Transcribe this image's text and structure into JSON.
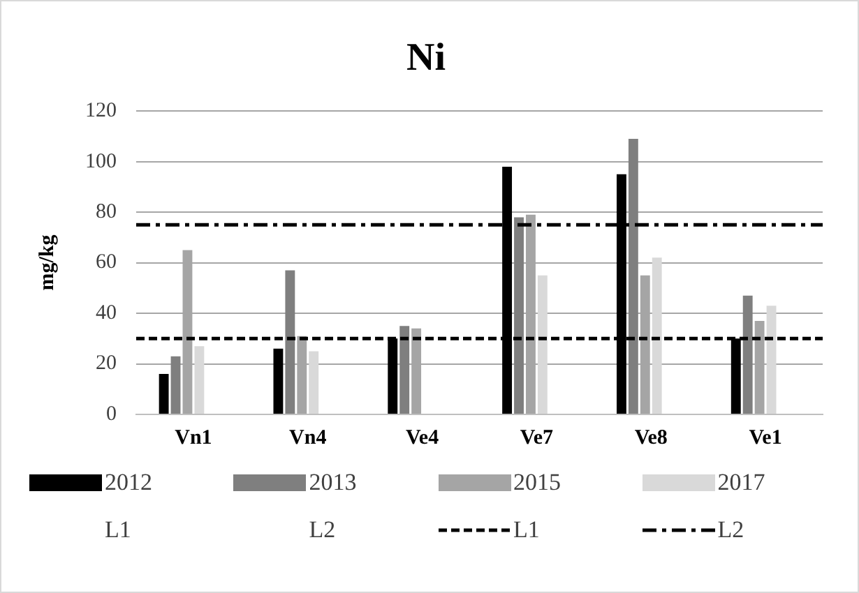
{
  "chart_data": {
    "type": "bar",
    "title": "Ni",
    "ylabel": "mg/kg",
    "categories": [
      "Vn1",
      "Vn4",
      "Ve4",
      "Ve7",
      "Ve8",
      "Ve1"
    ],
    "series": [
      {
        "name": "2012",
        "color": "#000000",
        "values": [
          16,
          26,
          30,
          98,
          95,
          30
        ]
      },
      {
        "name": "2013",
        "color": "#7f7f7f",
        "values": [
          23,
          57,
          35,
          78,
          109,
          47
        ]
      },
      {
        "name": "2015",
        "color": "#a5a5a5",
        "values": [
          65,
          31,
          34,
          79,
          55,
          37
        ]
      },
      {
        "name": "2017",
        "color": "#d9d9d9",
        "values": [
          27,
          25,
          null,
          55,
          62,
          43
        ]
      },
      {
        "name": "L1",
        "values": [
          null,
          null,
          null,
          null,
          null,
          null
        ]
      },
      {
        "name": "L2",
        "values": [
          null,
          null,
          null,
          null,
          null,
          null
        ]
      }
    ],
    "ref_lines": [
      {
        "axis": "y",
        "value": 30,
        "label": "L1",
        "color": "#000000",
        "line_style": "dashed"
      },
      {
        "axis": "y",
        "value": 75,
        "label": "L2",
        "color": "#000000",
        "line_style": "dashdot"
      }
    ],
    "ylim": [
      0,
      120
    ],
    "yticks": [
      0,
      20,
      40,
      60,
      80,
      100,
      120
    ],
    "grid": "y",
    "legend": "bottom"
  }
}
